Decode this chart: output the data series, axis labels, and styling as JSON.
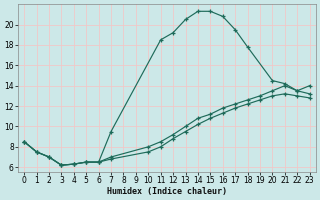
{
  "xlabel": "Humidex (Indice chaleur)",
  "bg_color": "#cce8e8",
  "grid_color": "#f0c8c8",
  "line_color": "#1e6b5a",
  "xlim": [
    -0.5,
    23.5
  ],
  "ylim": [
    5.5,
    22.0
  ],
  "xticks": [
    0,
    1,
    2,
    3,
    4,
    5,
    6,
    7,
    8,
    9,
    10,
    11,
    12,
    13,
    14,
    15,
    16,
    17,
    18,
    19,
    20,
    21,
    22,
    23
  ],
  "yticks": [
    6,
    8,
    10,
    12,
    14,
    16,
    18,
    20
  ],
  "curve1_x": [
    0,
    1,
    2,
    3,
    4,
    5,
    6,
    7,
    11,
    12,
    13,
    14,
    15,
    16,
    17,
    18,
    20,
    21,
    22,
    23
  ],
  "curve1_y": [
    8.5,
    7.5,
    7.0,
    6.2,
    6.3,
    6.5,
    6.5,
    9.5,
    18.5,
    19.2,
    20.5,
    21.3,
    21.3,
    20.8,
    19.5,
    17.8,
    14.5,
    14.2,
    13.5,
    14.0
  ],
  "curve2_x": [
    0,
    1,
    2,
    3,
    4,
    5,
    6,
    7,
    10,
    11,
    12,
    13,
    14,
    15,
    16,
    17,
    18,
    19,
    20,
    21,
    22,
    23
  ],
  "curve2_y": [
    8.5,
    7.5,
    7.0,
    6.2,
    6.3,
    6.5,
    6.5,
    7.0,
    8.0,
    8.5,
    9.2,
    10.0,
    10.8,
    11.2,
    11.8,
    12.2,
    12.6,
    13.0,
    13.5,
    14.0,
    13.5,
    13.2
  ],
  "curve3_x": [
    0,
    1,
    2,
    3,
    4,
    5,
    6,
    7,
    10,
    11,
    12,
    13,
    14,
    15,
    16,
    17,
    18,
    19,
    20,
    21,
    22,
    23
  ],
  "curve3_y": [
    8.5,
    7.5,
    7.0,
    6.2,
    6.3,
    6.5,
    6.5,
    6.8,
    7.5,
    8.0,
    8.8,
    9.5,
    10.2,
    10.8,
    11.3,
    11.8,
    12.2,
    12.6,
    13.0,
    13.2,
    13.0,
    12.8
  ]
}
